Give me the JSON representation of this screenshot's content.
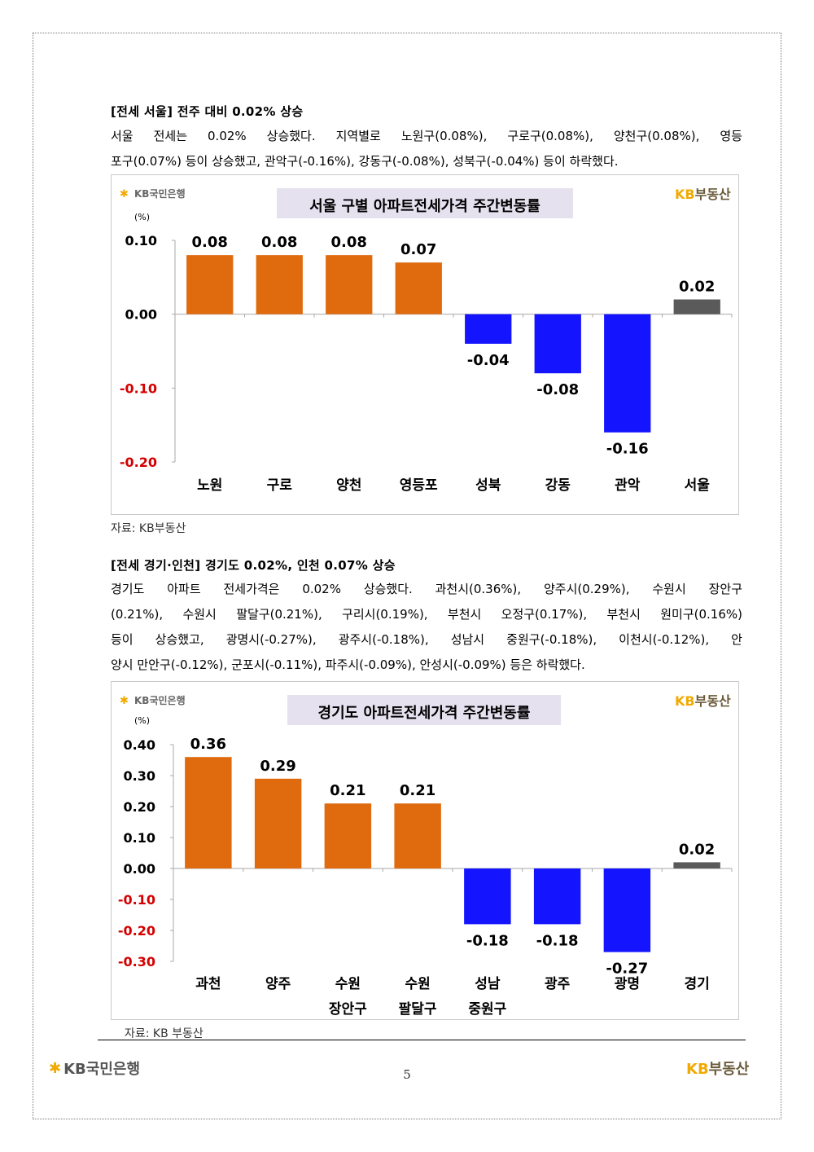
{
  "section1": {
    "heading": "[전세 서울] 전주 대비 0.02% 상승",
    "lines": [
      "서울 전세는 0.02% 상승했다. 지역별로 노원구(0.08%), 구로구(0.08%), 양천구(0.08%), 영등",
      "포구(0.07%) 등이 상승했고, 관악구(-0.16%), 강동구(-0.08%), 성북구(-0.04%) 등이 하락했다."
    ],
    "source": "자료: KB부동산"
  },
  "section2": {
    "heading": "[전세 경기·인천] 경기도 0.02%, 인천 0.07% 상승",
    "lines": [
      "경기도 아파트 전세가격은 0.02% 상승했다. 과천시(0.36%), 양주시(0.29%), 수원시 장안구",
      "(0.21%), 수원시 팔달구(0.21%), 구리시(0.19%), 부천시 오정구(0.17%), 부천시 원미구(0.16%)",
      "등이 상승했고, 광명시(-0.27%), 광주시(-0.18%), 성남시 중원구(-0.18%), 이천시(-0.12%), 안",
      "양시 만안구(-0.12%), 군포시(-0.11%), 파주시(-0.09%), 안성시(-0.09%) 등은 하락했다."
    ],
    "source": "자료: KB 부동산"
  },
  "chart_logo": {
    "kb_bank": "KB국민은행",
    "kb_realestate_kb": "KB",
    "kb_realestate_rest": "부동산"
  },
  "chart_data": [
    {
      "type": "bar",
      "title": "서울 구별 아파트전세가격 주간변동률",
      "unit_label": "(%)",
      "categories": [
        [
          "노원"
        ],
        [
          "구로"
        ],
        [
          "양천"
        ],
        [
          "영등포"
        ],
        [
          "성북"
        ],
        [
          "강동"
        ],
        [
          "관악"
        ],
        [
          "서울"
        ]
      ],
      "values": [
        0.08,
        0.08,
        0.08,
        0.07,
        -0.04,
        -0.08,
        -0.16,
        0.02
      ],
      "value_labels": [
        "0.08",
        "0.08",
        "0.08",
        "0.07",
        "-0.04",
        "-0.08",
        "-0.16",
        "0.02"
      ],
      "bar_colors": [
        "#e06b0f",
        "#e06b0f",
        "#e06b0f",
        "#e06b0f",
        "#1414ff",
        "#1414ff",
        "#1414ff",
        "#5a5a5a"
      ],
      "yticks": [
        0.1,
        0.0,
        -0.1,
        -0.2
      ],
      "ytick_labels": [
        "0.10",
        "0.00",
        "-0.10",
        "-0.20"
      ],
      "ylim": [
        -0.2,
        0.1
      ],
      "negative_tick_color": "#d40000"
    },
    {
      "type": "bar",
      "title": "경기도 아파트전세가격 주간변동률",
      "unit_label": "(%)",
      "categories": [
        [
          "과천"
        ],
        [
          "양주"
        ],
        [
          "수원",
          "장안구"
        ],
        [
          "수원",
          "팔달구"
        ],
        [
          "성남",
          "중원구"
        ],
        [
          "광주"
        ],
        [
          "광명"
        ],
        [
          "경기"
        ]
      ],
      "values": [
        0.36,
        0.29,
        0.21,
        0.21,
        -0.18,
        -0.18,
        -0.27,
        0.02
      ],
      "value_labels": [
        "0.36",
        "0.29",
        "0.21",
        "0.21",
        "-0.18",
        "-0.18",
        "-0.27",
        "0.02"
      ],
      "bar_colors": [
        "#e06b0f",
        "#e06b0f",
        "#e06b0f",
        "#e06b0f",
        "#1414ff",
        "#1414ff",
        "#1414ff",
        "#5a5a5a"
      ],
      "yticks": [
        0.4,
        0.3,
        0.2,
        0.1,
        0.0,
        -0.1,
        -0.2,
        -0.3
      ],
      "ytick_labels": [
        "0.40",
        "0.30",
        "0.20",
        "0.10",
        "0.00",
        "-0.10",
        "-0.20",
        "-0.30"
      ],
      "ylim": [
        -0.3,
        0.4
      ],
      "negative_tick_color": "#d40000"
    }
  ],
  "footer": {
    "page_number": "5",
    "kb_bank": "KB국민은행",
    "kb_realestate_kb": "KB",
    "kb_realestate_rest": "부동산"
  }
}
